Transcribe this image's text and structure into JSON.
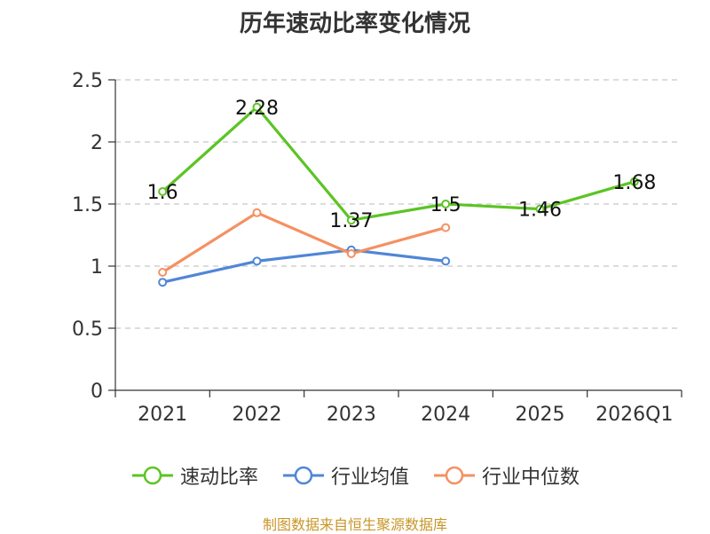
{
  "chart_data": {
    "type": "line",
    "title": "历年速动比率变化情况",
    "categories": [
      "2021",
      "2022",
      "2023",
      "2024",
      "2025",
      "2026Q1"
    ],
    "ylim": [
      0,
      2.5
    ],
    "yticks": [
      "0",
      "0.5",
      "1",
      "1.5",
      "2",
      "2.5"
    ],
    "grid": true,
    "legend_position": "bottom",
    "series": [
      {
        "name": "速动比率",
        "color": "#5cc424",
        "values": [
          1.6,
          2.28,
          1.37,
          1.5,
          1.46,
          1.68
        ],
        "labels": [
          "1.6",
          "2.28",
          "1.37",
          "1.5",
          "1.46",
          "1.68"
        ]
      },
      {
        "name": "行业均值",
        "color": "#4f86d8",
        "values": [
          0.87,
          1.04,
          1.13,
          1.04,
          null,
          null
        ]
      },
      {
        "name": "行业中位数",
        "color": "#f59062",
        "values": [
          0.95,
          1.43,
          1.1,
          1.31,
          null,
          null
        ]
      }
    ]
  },
  "source_note": "制图数据来自恒生聚源数据库"
}
